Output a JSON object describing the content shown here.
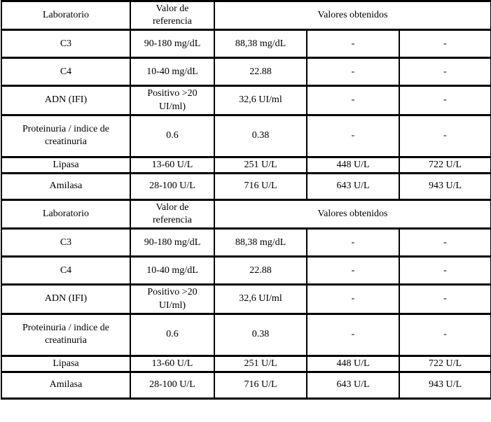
{
  "page": {
    "background_color": "#ffffff",
    "grid_color": "#000000",
    "text_color": "#000000"
  },
  "tables": [
    {
      "header": [
        "Laboratorio",
        "Valor de referencia",
        "Valores obtenidos"
      ],
      "rows": [
        {
          "label": "C3",
          "reference": "90-180 mg/dL",
          "values": [
            "88,38 mg/dL",
            "-",
            "-"
          ]
        },
        {
          "label": "C4",
          "reference": "10-40 mg/dL",
          "values": [
            "22.88",
            "-",
            "-"
          ]
        },
        {
          "label": "ADN (IFI)",
          "reference": "Positivo >20 UI/ml)",
          "values": [
            "32,6 UI/ml",
            "-",
            "-"
          ]
        },
        {
          "label": "Proteinuria / indice de creatinuria",
          "reference": "0.6",
          "values": [
            "0.38",
            "-",
            "-"
          ]
        },
        {
          "label": "Lipasa",
          "reference": "13-60 U/L",
          "values": [
            "251 U/L",
            "448 U/L",
            "722 U/L"
          ]
        },
        {
          "label": "Amilasa",
          "reference": "28-100 U/L",
          "values": [
            "716 U/L",
            "643 U/L",
            "943 U/L"
          ]
        }
      ]
    },
    {
      "header": [
        "Laboratorio",
        "Valor de referencia",
        "Valores obtenidos"
      ],
      "rows": [
        {
          "label": "C3",
          "reference": "90-180 mg/dL",
          "values": [
            "88,38 mg/dL",
            "-",
            "-"
          ]
        },
        {
          "label": "C4",
          "reference": "10-40 mg/dL",
          "values": [
            "22.88",
            "-",
            "-"
          ]
        },
        {
          "label": "ADN (IFI)",
          "reference": "Positivo >20 UI/ml)",
          "values": [
            "32,6 UI/ml",
            "-",
            "-"
          ]
        },
        {
          "label": "Proteinuria / indice de creatinuria",
          "reference": "0.6",
          "values": [
            "0.38",
            "-",
            "-"
          ]
        },
        {
          "label": "Lipasa",
          "reference": "13-60 U/L",
          "values": [
            "251 U/L",
            "448 U/L",
            "722 U/L"
          ]
        },
        {
          "label": "Amilasa",
          "reference": "28-100 U/L",
          "values": [
            "716 U/L",
            "643 U/L",
            "943 U/L"
          ]
        }
      ]
    }
  ]
}
